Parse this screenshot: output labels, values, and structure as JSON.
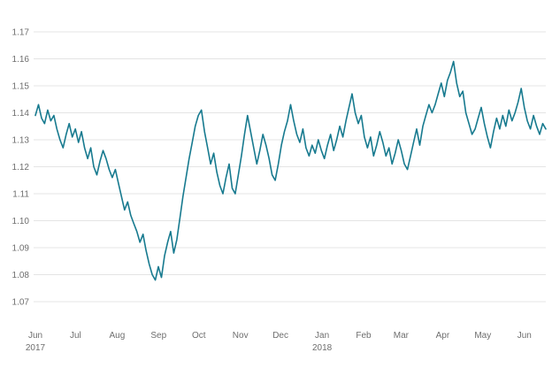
{
  "chart_data": {
    "type": "line",
    "title": "",
    "xlabel": "",
    "ylabel": "",
    "legend": null,
    "grid": true,
    "line_color": "#177a8f",
    "grid_color": "#e4e4e4",
    "axis_text_color": "#6e6e6e",
    "ylim": [
      1.07,
      1.17
    ],
    "y_ticks": [
      1.07,
      1.08,
      1.09,
      1.1,
      1.11,
      1.12,
      1.13,
      1.14,
      1.15,
      1.16,
      1.17
    ],
    "total_days": 381,
    "x_ticks": [
      {
        "label": "Jun",
        "day": 0,
        "year": "2017"
      },
      {
        "label": "Jul",
        "day": 30
      },
      {
        "label": "Aug",
        "day": 61
      },
      {
        "label": "Sep",
        "day": 92
      },
      {
        "label": "Oct",
        "day": 122
      },
      {
        "label": "Nov",
        "day": 153
      },
      {
        "label": "Dec",
        "day": 183
      },
      {
        "label": "Jan",
        "day": 214,
        "year": "2018"
      },
      {
        "label": "Feb",
        "day": 245
      },
      {
        "label": "Mar",
        "day": 273
      },
      {
        "label": "Apr",
        "day": 304
      },
      {
        "label": "May",
        "day": 334
      },
      {
        "label": "Jun",
        "day": 365
      }
    ],
    "values": [
      1.139,
      1.143,
      1.138,
      1.136,
      1.141,
      1.137,
      1.139,
      1.134,
      1.13,
      1.127,
      1.132,
      1.136,
      1.131,
      1.134,
      1.129,
      1.133,
      1.127,
      1.123,
      1.127,
      1.12,
      1.117,
      1.122,
      1.126,
      1.123,
      1.119,
      1.116,
      1.119,
      1.114,
      1.109,
      1.104,
      1.107,
      1.102,
      1.099,
      1.096,
      1.092,
      1.095,
      1.089,
      1.084,
      1.08,
      1.078,
      1.083,
      1.079,
      1.087,
      1.092,
      1.096,
      1.088,
      1.093,
      1.101,
      1.109,
      1.116,
      1.123,
      1.129,
      1.135,
      1.139,
      1.141,
      1.133,
      1.127,
      1.121,
      1.125,
      1.118,
      1.113,
      1.11,
      1.116,
      1.121,
      1.112,
      1.11,
      1.117,
      1.124,
      1.132,
      1.139,
      1.133,
      1.127,
      1.121,
      1.126,
      1.132,
      1.128,
      1.123,
      1.117,
      1.115,
      1.121,
      1.128,
      1.133,
      1.137,
      1.143,
      1.137,
      1.132,
      1.129,
      1.134,
      1.127,
      1.124,
      1.128,
      1.125,
      1.13,
      1.126,
      1.123,
      1.128,
      1.132,
      1.126,
      1.13,
      1.135,
      1.131,
      1.137,
      1.142,
      1.147,
      1.14,
      1.136,
      1.139,
      1.131,
      1.127,
      1.131,
      1.124,
      1.128,
      1.133,
      1.129,
      1.124,
      1.127,
      1.121,
      1.125,
      1.13,
      1.126,
      1.121,
      1.119,
      1.124,
      1.129,
      1.134,
      1.128,
      1.135,
      1.139,
      1.143,
      1.14,
      1.143,
      1.147,
      1.151,
      1.146,
      1.152,
      1.155,
      1.159,
      1.151,
      1.146,
      1.148,
      1.14,
      1.136,
      1.132,
      1.134,
      1.138,
      1.142,
      1.136,
      1.131,
      1.127,
      1.133,
      1.138,
      1.134,
      1.139,
      1.135,
      1.141,
      1.137,
      1.14,
      1.144,
      1.149,
      1.142,
      1.137,
      1.134,
      1.139,
      1.135,
      1.132,
      1.136,
      1.134
    ]
  }
}
